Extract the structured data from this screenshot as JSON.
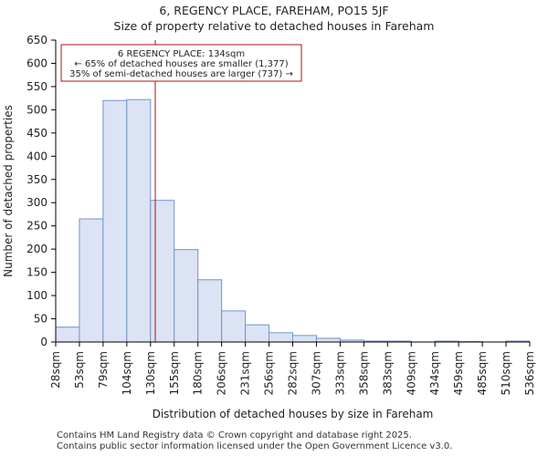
{
  "chart_data": {
    "type": "bar",
    "title": "6, REGENCY PLACE, FAREHAM, PO15 5JF",
    "subtitle": "Size of property relative to detached houses in Fareham",
    "xlabel": "Distribution of detached houses by size in Fareham",
    "ylabel": "Number of detached properties",
    "ylim": [
      0,
      650
    ],
    "yticks": [
      0,
      50,
      100,
      150,
      200,
      250,
      300,
      350,
      400,
      450,
      500,
      550,
      600,
      650
    ],
    "bin_edges": [
      "28sqm",
      "53sqm",
      "79sqm",
      "104sqm",
      "130sqm",
      "155sqm",
      "180sqm",
      "206sqm",
      "231sqm",
      "256sqm",
      "282sqm",
      "307sqm",
      "333sqm",
      "358sqm",
      "383sqm",
      "409sqm",
      "434sqm",
      "459sqm",
      "485sqm",
      "510sqm",
      "536sqm"
    ],
    "values": [
      32,
      265,
      520,
      522,
      305,
      199,
      134,
      67,
      37,
      20,
      14,
      8,
      4,
      2,
      2,
      0,
      2,
      1,
      0,
      2
    ],
    "bar_fill": "#dbe3f4",
    "bar_stroke": "#7094cc",
    "marker": {
      "bin_position": 4.2,
      "color": "#b01111",
      "label_line1": "6 REGENCY PLACE: 134sqm",
      "label_line2": "← 65% of detached houses are smaller (1,377)",
      "label_line3": "35% of semi-detached houses are larger (737) →"
    }
  },
  "footer": {
    "line1": "Contains HM Land Registry data © Crown copyright and database right 2025.",
    "line2": "Contains public sector information licensed under the Open Government Licence v3.0."
  }
}
